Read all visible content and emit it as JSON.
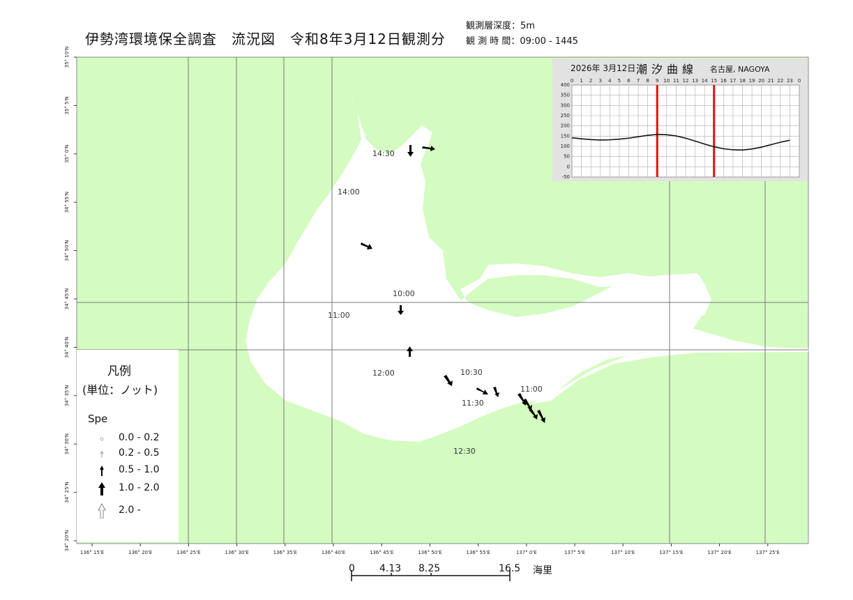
{
  "title": "伊勢湾環境保全調査　流況図　令和8年3月12日観測分",
  "meta": {
    "depth_label": "観測層深度：5m",
    "time_label": "観 測 時 間：09:00 - 1445"
  },
  "legend": {
    "title": "凡例",
    "unit": "(単位：ノット)",
    "field": "Spe",
    "classes": [
      "0.0 - 0.2",
      "0.2 - 0.5",
      "0.5 - 1.0",
      "1.0 - 2.0",
      "2.0 -"
    ]
  },
  "tide_chart": {
    "date": "2026年 3月12日",
    "heading": "潮汐曲線",
    "place": "名古屋,  NAGOYA",
    "hours": [
      "0",
      "1",
      "2",
      "3",
      "4",
      "5",
      "6",
      "7",
      "8",
      "9",
      "10",
      "11",
      "12",
      "13",
      "14",
      "15",
      "16",
      "17",
      "18",
      "19",
      "20",
      "21",
      "22",
      "23",
      "0"
    ],
    "levels": [
      "400",
      "350",
      "300",
      "250",
      "200",
      "150",
      "100",
      "50",
      "0",
      "-50"
    ],
    "hourly_cm": [
      142,
      137,
      133,
      131,
      132,
      135,
      140,
      147,
      154,
      158,
      157,
      151,
      140,
      126,
      111,
      98,
      88,
      83,
      82,
      87,
      96,
      108,
      120,
      130
    ],
    "observation_window_hours": [
      9,
      15
    ]
  },
  "map_grid": {
    "lon_labels": [
      "136° 15'E",
      "136° 20'E",
      "136° 25'E",
      "136° 30'E",
      "136° 35'E",
      "136° 40'E",
      "136° 45'E",
      "136° 50'E",
      "136° 55'E",
      "137° 0'E",
      "137° 5'E",
      "137° 10'E",
      "137° 15'E",
      "137° 20'E",
      "137° 25'E"
    ],
    "lat_labels": [
      "35° 10'N",
      "35° 5'N",
      "35° 0'N",
      "34° 55'N",
      "34° 50'N",
      "34° 45'N",
      "34° 40'N",
      "34° 35'N",
      "34° 30'N",
      "34° 25'N",
      "34° 20'N"
    ]
  },
  "time_labels": [
    "14:30",
    "14:00",
    "10:00",
    "11:00",
    "12:00",
    "10:30",
    "11:30",
    "11:00",
    "12:30"
  ],
  "scale": {
    "ticks": [
      "0",
      "4.13",
      "8.25",
      "16.5"
    ],
    "unit": "海里"
  },
  "colors": {
    "land": "#d4fbc0",
    "sea": "#ffffff",
    "tide_line": "#111111",
    "window": "#e01010"
  }
}
